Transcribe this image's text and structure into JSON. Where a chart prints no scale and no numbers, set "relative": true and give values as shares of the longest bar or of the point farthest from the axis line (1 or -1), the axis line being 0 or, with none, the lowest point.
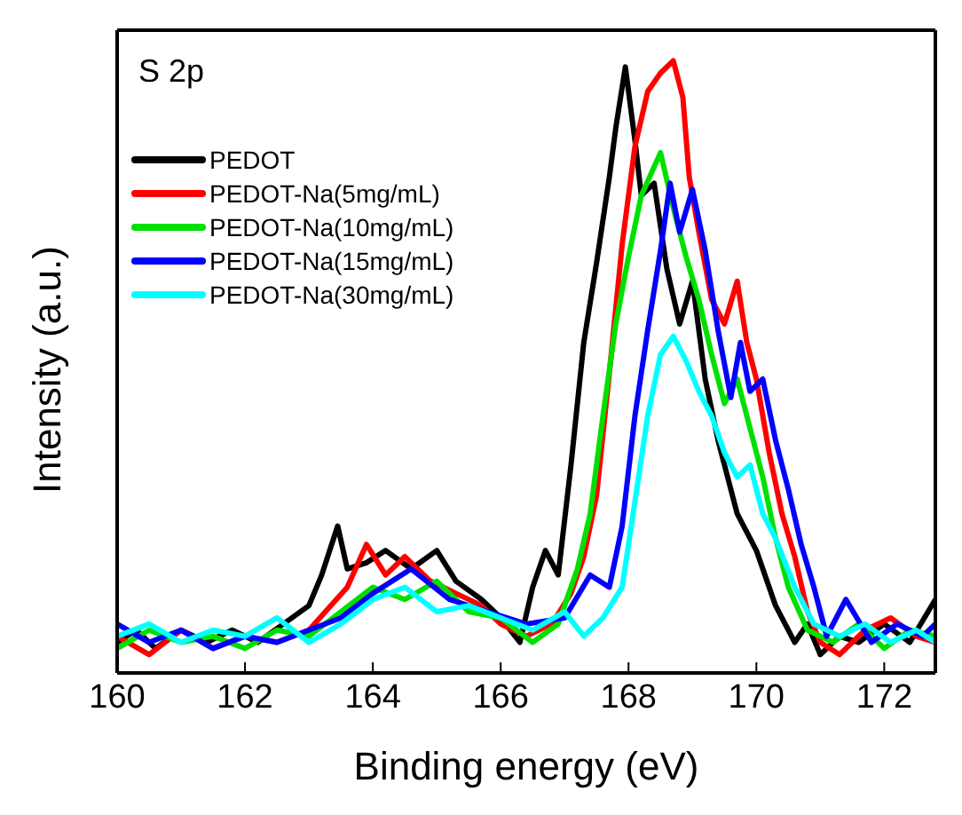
{
  "chart_data": {
    "type": "line",
    "relative": true,
    "xlabel": "Binding energy (eV)",
    "ylabel": "Intensity (a.u.)",
    "annotations": [
      "S 2p"
    ],
    "xlim": [
      160,
      172.8
    ],
    "xticks": [
      160,
      162,
      164,
      166,
      168,
      170,
      172
    ],
    "legend": "top left",
    "series": [
      {
        "name": "PEDOT",
        "color": "#000000",
        "x": [
          160,
          160.3,
          160.6,
          161,
          161.4,
          161.8,
          162.2,
          162.6,
          163,
          163.2,
          163.45,
          163.6,
          163.9,
          164.2,
          164.6,
          165,
          165.3,
          165.7,
          166,
          166.3,
          166.5,
          166.7,
          166.9,
          167.1,
          167.3,
          167.5,
          167.7,
          167.8,
          167.95,
          168.1,
          168.2,
          168.4,
          168.6,
          168.8,
          169,
          169.2,
          169.4,
          169.7,
          170,
          170.3,
          170.6,
          170.8,
          171,
          171.3,
          171.6,
          172,
          172.4,
          172.8
        ],
        "values": [
          0.05,
          0.07,
          0.04,
          0.07,
          0.05,
          0.07,
          0.05,
          0.08,
          0.11,
          0.16,
          0.24,
          0.17,
          0.18,
          0.2,
          0.17,
          0.2,
          0.15,
          0.12,
          0.09,
          0.05,
          0.14,
          0.2,
          0.16,
          0.34,
          0.54,
          0.67,
          0.81,
          0.89,
          0.99,
          0.87,
          0.78,
          0.8,
          0.66,
          0.57,
          0.64,
          0.48,
          0.38,
          0.26,
          0.2,
          0.11,
          0.05,
          0.08,
          0.03,
          0.06,
          0.05,
          0.08,
          0.05,
          0.12
        ]
      },
      {
        "name": "PEDOT-Na(5mg/mL)",
        "color": "#ff0000",
        "x": [
          160,
          160.5,
          161,
          161.5,
          162,
          162.5,
          163,
          163.6,
          163.9,
          164.2,
          164.5,
          164.9,
          165.3,
          165.7,
          166,
          166.4,
          166.8,
          167.1,
          167.3,
          167.5,
          167.7,
          167.9,
          168.1,
          168.3,
          168.5,
          168.7,
          168.85,
          168.95,
          169.1,
          169.3,
          169.5,
          169.7,
          169.85,
          170,
          170.2,
          170.4,
          170.6,
          170.8,
          171,
          171.3,
          171.7,
          172.1,
          172.5,
          172.8
        ],
        "values": [
          0.06,
          0.03,
          0.07,
          0.04,
          0.06,
          0.05,
          0.07,
          0.14,
          0.21,
          0.16,
          0.19,
          0.15,
          0.13,
          0.11,
          0.08,
          0.06,
          0.08,
          0.13,
          0.19,
          0.29,
          0.49,
          0.7,
          0.86,
          0.95,
          0.98,
          1,
          0.94,
          0.81,
          0.72,
          0.61,
          0.57,
          0.64,
          0.54,
          0.48,
          0.36,
          0.26,
          0.19,
          0.1,
          0.05,
          0.03,
          0.07,
          0.09,
          0.06,
          0.05
        ]
      },
      {
        "name": "PEDOT-Na(10mg/mL)",
        "color": "#00e000",
        "x": [
          160,
          160.5,
          161,
          161.5,
          162,
          162.5,
          163,
          163.5,
          164,
          164.5,
          165,
          165.5,
          166,
          166.5,
          166.9,
          167.2,
          167.4,
          167.6,
          167.8,
          168,
          168.2,
          168.5,
          168.7,
          168.9,
          169.1,
          169.3,
          169.5,
          169.7,
          169.9,
          170.1,
          170.3,
          170.5,
          170.8,
          171.2,
          171.6,
          172,
          172.4,
          172.8
        ],
        "values": [
          0.04,
          0.07,
          0.05,
          0.06,
          0.04,
          0.07,
          0.06,
          0.1,
          0.14,
          0.12,
          0.15,
          0.1,
          0.09,
          0.05,
          0.08,
          0.17,
          0.26,
          0.42,
          0.57,
          0.68,
          0.78,
          0.85,
          0.76,
          0.68,
          0.61,
          0.52,
          0.44,
          0.48,
          0.4,
          0.32,
          0.22,
          0.14,
          0.07,
          0.05,
          0.08,
          0.04,
          0.07,
          0.06
        ]
      },
      {
        "name": "PEDOT-Na(15mg/mL)",
        "color": "#0000ff",
        "x": [
          160,
          160.5,
          161,
          161.5,
          162,
          162.5,
          163,
          163.5,
          164,
          164.6,
          165.2,
          165.8,
          166.4,
          167,
          167.4,
          167.7,
          167.9,
          168.1,
          168.3,
          168.5,
          168.65,
          168.8,
          169,
          169.2,
          169.4,
          169.6,
          169.75,
          169.9,
          170.1,
          170.3,
          170.5,
          170.7,
          170.9,
          171.1,
          171.4,
          171.8,
          172.2,
          172.6,
          172.8
        ],
        "values": [
          0.08,
          0.05,
          0.07,
          0.04,
          0.06,
          0.05,
          0.07,
          0.09,
          0.13,
          0.17,
          0.12,
          0.1,
          0.08,
          0.09,
          0.16,
          0.14,
          0.24,
          0.42,
          0.56,
          0.69,
          0.8,
          0.72,
          0.79,
          0.69,
          0.56,
          0.45,
          0.54,
          0.46,
          0.48,
          0.38,
          0.3,
          0.21,
          0.14,
          0.06,
          0.12,
          0.05,
          0.08,
          0.06,
          0.08
        ]
      },
      {
        "name": "PEDOT-Na(30mg/mL)",
        "color": "#00ffff",
        "x": [
          160,
          160.5,
          161,
          161.5,
          162,
          162.5,
          163,
          163.5,
          164,
          164.5,
          165,
          165.5,
          166,
          166.5,
          167,
          167.3,
          167.6,
          167.9,
          168.1,
          168.3,
          168.5,
          168.7,
          168.9,
          169.1,
          169.3,
          169.5,
          169.7,
          169.9,
          170.1,
          170.3,
          170.6,
          170.9,
          171.3,
          171.7,
          172.1,
          172.5,
          172.8
        ],
        "values": [
          0.06,
          0.08,
          0.05,
          0.07,
          0.06,
          0.09,
          0.05,
          0.08,
          0.12,
          0.14,
          0.1,
          0.11,
          0.09,
          0.07,
          0.1,
          0.06,
          0.09,
          0.14,
          0.28,
          0.42,
          0.52,
          0.55,
          0.51,
          0.46,
          0.42,
          0.36,
          0.32,
          0.34,
          0.26,
          0.22,
          0.14,
          0.08,
          0.06,
          0.08,
          0.05,
          0.07,
          0.05
        ]
      }
    ]
  }
}
